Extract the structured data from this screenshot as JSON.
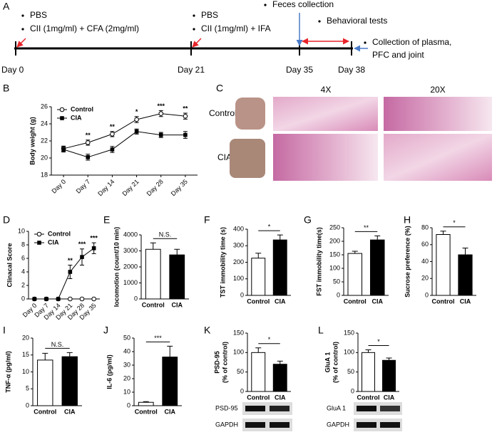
{
  "timeline": {
    "panel": "A",
    "day0_notes": [
      "PBS",
      "CII (1mg/ml) + CFA (2mg/ml)"
    ],
    "day21_notes": [
      "PBS",
      "CII (1mg/ml) + IFA"
    ],
    "feces": "Feces collection",
    "behavior": "Behavioral tests",
    "collection": [
      "Collection of plasma,",
      "PFC and joint"
    ],
    "days": [
      "Day 0",
      "Day 21",
      "Day 35",
      "Day 38"
    ]
  },
  "histology": {
    "panel": "C",
    "columns": [
      "4X",
      "20X"
    ],
    "rows": [
      "Control",
      "CIA"
    ]
  },
  "blots": [
    {
      "labels": [
        "PSD-95",
        "GAPDH"
      ]
    },
    {
      "labels": [
        "GluA 1",
        "GAPDH"
      ]
    }
  ],
  "chart_data": [
    {
      "type": "line",
      "panel": "B",
      "categories": [
        "Day 0",
        "Day 7",
        "Day 14",
        "Day 21",
        "Day 28",
        "Day 35"
      ],
      "ylabel": "Body weight (g)",
      "ylim": [
        18,
        26
      ],
      "yticks": [
        18,
        20,
        22,
        24,
        26
      ],
      "legend": "upper-left",
      "series": [
        {
          "name": "Control",
          "color": "#000000",
          "marker": "open-circle",
          "values": [
            21.1,
            21.8,
            22.8,
            24.5,
            25.2,
            24.9
          ],
          "errors": [
            0.3,
            0.3,
            0.3,
            0.35,
            0.35,
            0.35
          ]
        },
        {
          "name": "CIA",
          "color": "#000000",
          "marker": "filled-square",
          "values": [
            21.0,
            20.1,
            21.0,
            23.1,
            22.7,
            22.7
          ],
          "errors": [
            0.3,
            0.35,
            0.35,
            0.3,
            0.3,
            0.4
          ]
        }
      ],
      "significance": [
        null,
        "**",
        "**",
        "*",
        "***",
        "**"
      ]
    },
    {
      "type": "line",
      "panel": "D",
      "categories": [
        "Day 0",
        "Day 7",
        "Day 14",
        "Day 21",
        "Day 28",
        "Day 35"
      ],
      "ylabel": "Clinacal Score",
      "ylim": [
        0,
        10
      ],
      "yticks": [
        0,
        2,
        4,
        6,
        8,
        10
      ],
      "legend": "upper-left",
      "series": [
        {
          "name": "Control",
          "color": "#000000",
          "marker": "open-circle",
          "values": [
            0,
            0,
            0,
            0,
            0,
            0
          ],
          "errors": [
            0,
            0,
            0,
            0,
            0,
            0
          ]
        },
        {
          "name": "CIA",
          "color": "#000000",
          "marker": "filled-square",
          "values": [
            0,
            0,
            0,
            4.0,
            6.2,
            7.5
          ],
          "errors": [
            0,
            0,
            0,
            1.0,
            1.2,
            0.8
          ]
        }
      ],
      "significance": [
        null,
        null,
        null,
        "**",
        "***",
        "***"
      ]
    },
    {
      "type": "bar",
      "panel": "E",
      "categories": [
        "Control",
        "CIA"
      ],
      "ylabel": "locomotion (count/10 min)",
      "ylim": [
        0,
        4000
      ],
      "yticks": [
        0,
        1000,
        2000,
        3000,
        4000
      ],
      "values": [
        3100,
        2750
      ],
      "errors": [
        400,
        350
      ],
      "colors": [
        "#ffffff",
        "#000000"
      ],
      "annotation": "N.S."
    },
    {
      "type": "bar",
      "panel": "F",
      "categories": [
        "Control",
        "CIA"
      ],
      "ylabel": "TST immobility time (s)",
      "ylim": [
        0,
        400
      ],
      "yticks": [
        0,
        100,
        200,
        300,
        400
      ],
      "values": [
        225,
        335
      ],
      "errors": [
        30,
        30
      ],
      "colors": [
        "#ffffff",
        "#000000"
      ],
      "annotation": "*"
    },
    {
      "type": "bar",
      "panel": "G",
      "categories": [
        "Control",
        "CIA"
      ],
      "ylabel": "FST immobility time(s)",
      "ylim": [
        0,
        250
      ],
      "yticks": [
        0,
        50,
        100,
        150,
        200,
        250
      ],
      "values": [
        155,
        205
      ],
      "errors": [
        8,
        15
      ],
      "colors": [
        "#ffffff",
        "#000000"
      ],
      "annotation": "**"
    },
    {
      "type": "bar",
      "panel": "H",
      "categories": [
        "Control",
        "CIA"
      ],
      "ylabel": "Sucrose preference (%)",
      "ylim": [
        0,
        80
      ],
      "yticks": [
        0,
        20,
        40,
        60,
        80
      ],
      "values": [
        72,
        48
      ],
      "errors": [
        4,
        8
      ],
      "colors": [
        "#ffffff",
        "#000000"
      ],
      "annotation": "*"
    },
    {
      "type": "bar",
      "panel": "I",
      "categories": [
        "Control",
        "CIA"
      ],
      "ylabel": "TNF-α (pg/ml)",
      "ylim": [
        0,
        20
      ],
      "yticks": [
        0,
        5,
        10,
        15,
        20
      ],
      "values": [
        13.5,
        14.5
      ],
      "errors": [
        2,
        1.2
      ],
      "colors": [
        "#ffffff",
        "#000000"
      ],
      "annotation": "N.S."
    },
    {
      "type": "bar",
      "panel": "J",
      "categories": [
        "Control",
        "CIA"
      ],
      "ylabel": "IL-6 (pg/ml)",
      "ylim": [
        0,
        50
      ],
      "yticks": [
        0,
        10,
        20,
        30,
        40,
        50
      ],
      "values": [
        2.5,
        36
      ],
      "errors": [
        0.5,
        8
      ],
      "colors": [
        "#ffffff",
        "#000000"
      ],
      "annotation": "***"
    },
    {
      "type": "bar",
      "panel": "K",
      "categories": [
        "Control",
        "CIA"
      ],
      "ylabel": "PSD-95",
      "ylabel2": "(% of control)",
      "ylim": [
        0,
        150
      ],
      "yticks": [
        0,
        50,
        100,
        150
      ],
      "values": [
        100,
        70
      ],
      "errors": [
        12,
        8
      ],
      "colors": [
        "#ffffff",
        "#000000"
      ],
      "annotation": "*"
    },
    {
      "type": "bar",
      "panel": "L",
      "categories": [
        "Control",
        "CIA"
      ],
      "ylabel": "GluA 1",
      "ylabel2": "(% of control)",
      "ylim": [
        0,
        150
      ],
      "yticks": [
        0,
        50,
        100,
        150
      ],
      "values": [
        100,
        80
      ],
      "errors": [
        7,
        6
      ],
      "colors": [
        "#ffffff",
        "#000000"
      ],
      "annotation": "*"
    }
  ]
}
